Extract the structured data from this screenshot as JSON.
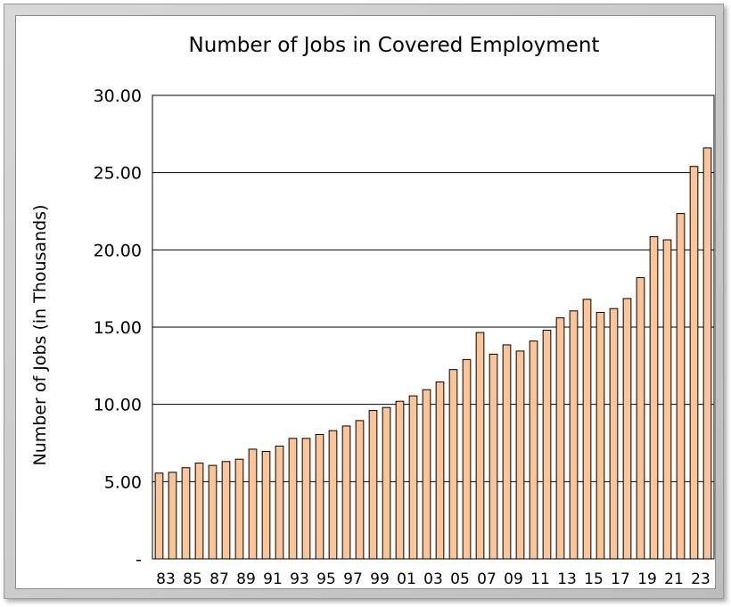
{
  "chart_data": {
    "type": "bar",
    "title": "Number of Jobs in Covered Employment",
    "xlabel": "",
    "ylabel": "Number of Jobs (in Thousands)",
    "ylim": [
      0,
      30
    ],
    "yticks": [
      {
        "value": 0,
        "label": "-"
      },
      {
        "value": 5,
        "label": "5.00"
      },
      {
        "value": 10,
        "label": "10.00"
      },
      {
        "value": 15,
        "label": "15.00"
      },
      {
        "value": 20,
        "label": "20.00"
      },
      {
        "value": 25,
        "label": "25.00"
      },
      {
        "value": 30,
        "label": "30.00"
      }
    ],
    "categories": [
      "83",
      "84",
      "85",
      "86",
      "87",
      "88",
      "89",
      "90",
      "91",
      "92",
      "93",
      "94",
      "95",
      "96",
      "97",
      "98",
      "99",
      "00",
      "01",
      "02",
      "03",
      "04",
      "05",
      "06",
      "07",
      "08",
      "09",
      "10",
      "11",
      "12",
      "13",
      "14",
      "15",
      "16",
      "17",
      "18",
      "19",
      "20",
      "21",
      "22",
      "23",
      "24"
    ],
    "xtick_labels": [
      "83",
      "",
      "85",
      "",
      "87",
      "",
      "89",
      "",
      "91",
      "",
      "93",
      "",
      "95",
      "",
      "97",
      "",
      "99",
      "",
      "01",
      "",
      "03",
      "",
      "05",
      "",
      "07",
      "",
      "09",
      "",
      "11",
      "",
      "13",
      "",
      "15",
      "",
      "17",
      "",
      "19",
      "",
      "21",
      "",
      "23",
      ""
    ],
    "values": [
      5.55,
      5.6,
      5.9,
      6.2,
      6.05,
      6.3,
      6.45,
      7.1,
      6.95,
      7.3,
      7.8,
      7.8,
      8.05,
      8.3,
      8.6,
      8.95,
      9.6,
      9.8,
      10.2,
      10.55,
      10.95,
      11.45,
      12.25,
      12.9,
      14.65,
      13.25,
      13.85,
      13.45,
      14.1,
      14.8,
      15.6,
      16.05,
      16.8,
      15.95,
      16.2,
      16.85,
      18.2,
      20.85,
      20.65,
      22.35,
      25.4,
      26.6
    ],
    "grid": true,
    "legend": "none",
    "bar_fill": "#fbc599",
    "bar_stroke": "#000000"
  }
}
